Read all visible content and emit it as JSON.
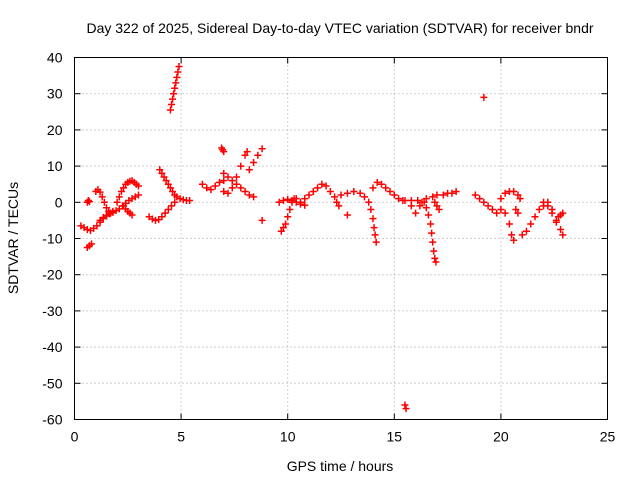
{
  "chart_data": {
    "type": "scatter",
    "title": "Day 322 of 2025, Sidereal Day-to-day VTEC variation (SDTVAR) for receiver bndr",
    "xlabel": "GPS time / hours",
    "ylabel": "SDTVAR / TECUs",
    "xlim": [
      0,
      25
    ],
    "ylim": [
      -60,
      40
    ],
    "xticks": [
      0,
      5,
      10,
      15,
      20,
      25
    ],
    "yticks": [
      40,
      30,
      20,
      10,
      0,
      -10,
      -20,
      -30,
      -40,
      -50,
      -60
    ],
    "grid": true,
    "marker": "+",
    "color": "#ff0000",
    "series": [
      {
        "name": "SDTVAR",
        "points": [
          [
            0.3,
            -6.5
          ],
          [
            0.45,
            -7.0
          ],
          [
            0.6,
            -7.5
          ],
          [
            0.75,
            -7.8
          ],
          [
            0.9,
            -7.2
          ],
          [
            1.05,
            -6.5
          ],
          [
            1.2,
            -5.5
          ],
          [
            1.35,
            -4.5
          ],
          [
            1.5,
            -3.8
          ],
          [
            1.65,
            -3.0
          ],
          [
            1.8,
            -2.5
          ],
          [
            0.6,
            -12.5
          ],
          [
            0.7,
            -12.0
          ],
          [
            0.8,
            -11.5
          ],
          [
            0.6,
            0.0
          ],
          [
            0.65,
            0.5
          ],
          [
            0.7,
            0.2
          ],
          [
            1.0,
            3.0
          ],
          [
            1.1,
            3.5
          ],
          [
            1.2,
            2.8
          ],
          [
            1.3,
            1.5
          ],
          [
            1.4,
            0.0
          ],
          [
            1.5,
            -1.5
          ],
          [
            1.6,
            -2.5
          ],
          [
            1.7,
            -3.0
          ],
          [
            1.2,
            -5.0
          ],
          [
            1.35,
            -4.2
          ],
          [
            1.5,
            -3.6
          ],
          [
            1.65,
            -3.2
          ],
          [
            1.8,
            -2.8
          ],
          [
            1.95,
            -2.3
          ],
          [
            2.1,
            -1.8
          ],
          [
            2.25,
            -1.0
          ],
          [
            2.4,
            -0.3
          ],
          [
            2.55,
            0.5
          ],
          [
            2.7,
            1.0
          ],
          [
            2.85,
            1.5
          ],
          [
            3.0,
            2.0
          ],
          [
            2.0,
            0.0
          ],
          [
            2.1,
            1.5
          ],
          [
            2.2,
            3.0
          ],
          [
            2.3,
            4.0
          ],
          [
            2.4,
            5.0
          ],
          [
            2.5,
            5.5
          ],
          [
            2.6,
            5.8
          ],
          [
            2.7,
            6.0
          ],
          [
            2.8,
            5.5
          ],
          [
            2.9,
            5.0
          ],
          [
            3.0,
            4.5
          ],
          [
            2.3,
            -1.0
          ],
          [
            2.4,
            -1.8
          ],
          [
            2.5,
            -2.5
          ],
          [
            2.6,
            -3.0
          ],
          [
            2.7,
            -3.5
          ],
          [
            3.5,
            -4.0
          ],
          [
            3.65,
            -4.6
          ],
          [
            3.8,
            -5.0
          ],
          [
            3.95,
            -4.8
          ],
          [
            4.1,
            -4.0
          ],
          [
            4.25,
            -3.0
          ],
          [
            4.4,
            -2.0
          ],
          [
            4.55,
            -1.0
          ],
          [
            4.7,
            0.0
          ],
          [
            4.0,
            9.0
          ],
          [
            4.1,
            8.0
          ],
          [
            4.2,
            7.0
          ],
          [
            4.3,
            6.0
          ],
          [
            4.4,
            5.0
          ],
          [
            4.5,
            4.0
          ],
          [
            4.6,
            3.0
          ],
          [
            4.7,
            2.0
          ],
          [
            4.8,
            1.5
          ],
          [
            4.95,
            1.0
          ],
          [
            5.1,
            0.7
          ],
          [
            5.25,
            0.5
          ],
          [
            5.4,
            0.5
          ],
          [
            4.5,
            25.5
          ],
          [
            4.55,
            27.0
          ],
          [
            4.6,
            28.5
          ],
          [
            4.65,
            30.0
          ],
          [
            4.7,
            31.5
          ],
          [
            4.75,
            33.0
          ],
          [
            4.8,
            34.5
          ],
          [
            4.85,
            36.0
          ],
          [
            4.9,
            37.5
          ],
          [
            6.0,
            5.0
          ],
          [
            6.2,
            4.0
          ],
          [
            6.4,
            3.5
          ],
          [
            6.6,
            4.5
          ],
          [
            6.8,
            5.5
          ],
          [
            7.0,
            6.0
          ],
          [
            6.9,
            15.0
          ],
          [
            6.95,
            14.5
          ],
          [
            7.0,
            14.0
          ],
          [
            7.0,
            3.0
          ],
          [
            7.2,
            2.5
          ],
          [
            7.4,
            4.0
          ],
          [
            7.6,
            7.0
          ],
          [
            7.8,
            10.0
          ],
          [
            8.0,
            13.0
          ],
          [
            8.1,
            14.0
          ],
          [
            7.0,
            8.0
          ],
          [
            7.2,
            7.0
          ],
          [
            7.4,
            6.0
          ],
          [
            7.6,
            5.0
          ],
          [
            7.8,
            4.0
          ],
          [
            8.0,
            3.0
          ],
          [
            8.2,
            2.0
          ],
          [
            8.4,
            1.5
          ],
          [
            8.2,
            9.0
          ],
          [
            8.4,
            11.0
          ],
          [
            8.6,
            13.0
          ],
          [
            8.8,
            14.8
          ],
          [
            8.8,
            -5.0
          ],
          [
            9.7,
            -8.0
          ],
          [
            9.8,
            -7.0
          ],
          [
            9.9,
            -6.0
          ],
          [
            10.0,
            -4.0
          ],
          [
            10.1,
            -2.0
          ],
          [
            10.2,
            0.0
          ],
          [
            10.3,
            1.0
          ],
          [
            9.6,
            0.0
          ],
          [
            9.8,
            0.5
          ],
          [
            10.0,
            0.8
          ],
          [
            10.2,
            0.5
          ],
          [
            10.4,
            0.0
          ],
          [
            10.6,
            -0.5
          ],
          [
            10.4,
            1.0
          ],
          [
            10.6,
            0.0
          ],
          [
            10.8,
            -0.8
          ],
          [
            10.8,
            1.0
          ],
          [
            11.0,
            2.0
          ],
          [
            11.2,
            3.0
          ],
          [
            11.4,
            4.0
          ],
          [
            11.6,
            5.0
          ],
          [
            11.8,
            4.5
          ],
          [
            12.0,
            3.0
          ],
          [
            12.2,
            1.5
          ],
          [
            12.3,
            0.0
          ],
          [
            12.4,
            -1.0
          ],
          [
            12.5,
            2.0
          ],
          [
            12.8,
            2.5
          ],
          [
            13.1,
            3.0
          ],
          [
            13.4,
            2.5
          ],
          [
            13.6,
            1.5
          ],
          [
            13.8,
            0.0
          ],
          [
            13.9,
            -2.0
          ],
          [
            14.0,
            -4.5
          ],
          [
            14.05,
            -7.0
          ],
          [
            14.1,
            -9.0
          ],
          [
            14.15,
            -11.0
          ],
          [
            12.8,
            -3.5
          ],
          [
            14.0,
            4.0
          ],
          [
            14.2,
            5.5
          ],
          [
            14.4,
            5.0
          ],
          [
            14.6,
            4.0
          ],
          [
            14.8,
            3.0
          ],
          [
            15.0,
            2.0
          ],
          [
            15.2,
            1.0
          ],
          [
            15.4,
            0.5
          ],
          [
            15.5,
            0.5
          ],
          [
            15.8,
            0.5
          ],
          [
            16.1,
            0.5
          ],
          [
            16.3,
            0.0
          ],
          [
            15.5,
            -56.0
          ],
          [
            15.55,
            -57.0
          ],
          [
            15.8,
            -1.0
          ],
          [
            16.0,
            -3.0
          ],
          [
            16.2,
            -1.0
          ],
          [
            16.4,
            0.0
          ],
          [
            16.5,
            -1.5
          ],
          [
            16.6,
            -3.5
          ],
          [
            16.7,
            -6.0
          ],
          [
            16.75,
            -8.5
          ],
          [
            16.8,
            -11.0
          ],
          [
            16.85,
            -13.5
          ],
          [
            16.9,
            -15.5
          ],
          [
            16.95,
            -16.5
          ],
          [
            16.5,
            1.0
          ],
          [
            16.8,
            1.5
          ],
          [
            17.0,
            2.0
          ],
          [
            17.3,
            2.0
          ],
          [
            17.5,
            2.5
          ],
          [
            17.7,
            2.5
          ],
          [
            17.9,
            3.0
          ],
          [
            16.9,
            0.0
          ],
          [
            17.0,
            -1.0
          ],
          [
            17.1,
            -2.0
          ],
          [
            18.8,
            2.0
          ],
          [
            19.0,
            1.0
          ],
          [
            19.2,
            0.0
          ],
          [
            19.4,
            -1.0
          ],
          [
            19.6,
            -2.0
          ],
          [
            19.8,
            -3.0
          ],
          [
            20.0,
            -2.0
          ],
          [
            20.2,
            -3.0
          ],
          [
            20.4,
            -6.0
          ],
          [
            20.5,
            -9.0
          ],
          [
            20.6,
            -10.5
          ],
          [
            19.2,
            29.0
          ],
          [
            20.0,
            1.0
          ],
          [
            20.2,
            2.5
          ],
          [
            20.4,
            3.0
          ],
          [
            20.6,
            3.0
          ],
          [
            20.8,
            2.0
          ],
          [
            20.9,
            1.0
          ],
          [
            20.7,
            -2.0
          ],
          [
            20.8,
            -3.0
          ],
          [
            21.0,
            -9.0
          ],
          [
            21.2,
            -8.0
          ],
          [
            21.4,
            -6.0
          ],
          [
            21.6,
            -4.0
          ],
          [
            21.8,
            -2.0
          ],
          [
            22.0,
            -1.0
          ],
          [
            22.2,
            0.0
          ],
          [
            22.4,
            -2.0
          ],
          [
            22.6,
            -5.0
          ],
          [
            22.8,
            -7.5
          ],
          [
            22.9,
            -9.0
          ],
          [
            22.0,
            0.0
          ],
          [
            22.2,
            -1.0
          ],
          [
            22.4,
            -3.0
          ],
          [
            22.6,
            -5.5
          ],
          [
            22.7,
            -4.0
          ],
          [
            22.8,
            -3.5
          ],
          [
            22.9,
            -3.0
          ]
        ]
      }
    ]
  }
}
